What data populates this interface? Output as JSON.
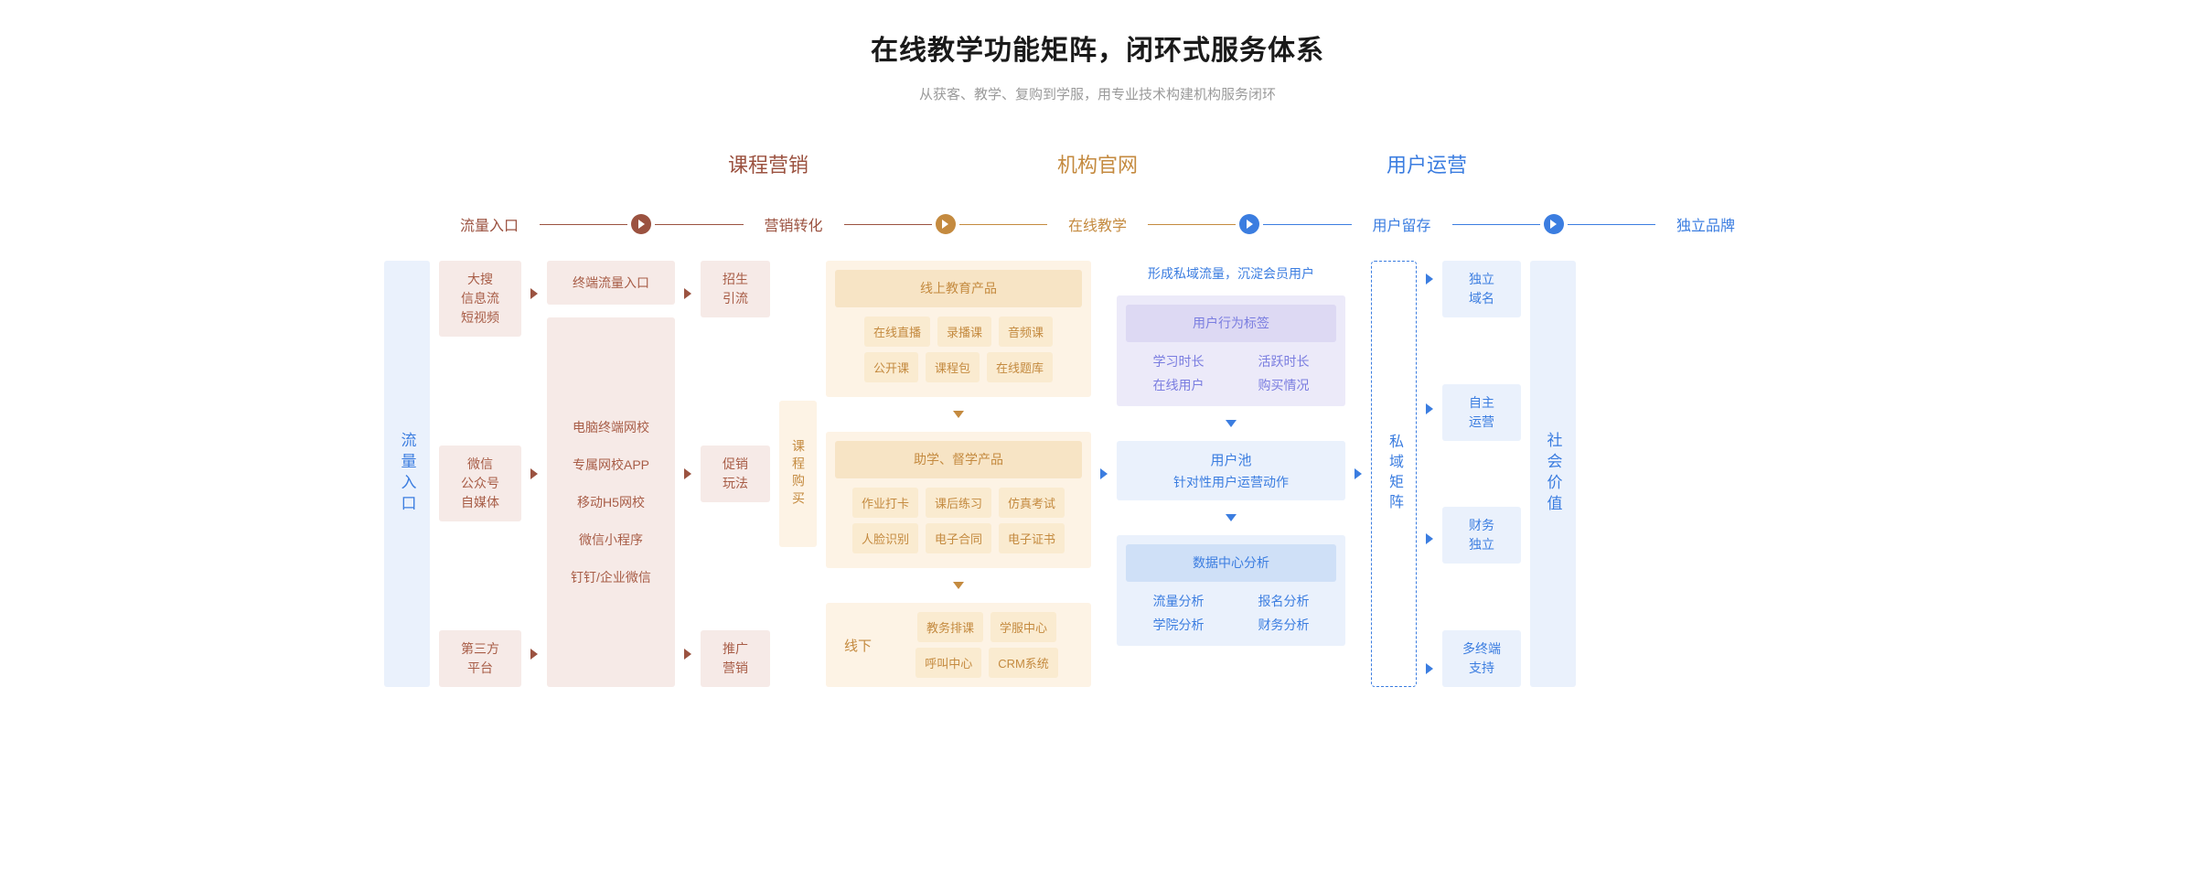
{
  "colors": {
    "brown": "#9b5240",
    "brown_light": "#f6eae7",
    "brown_chip": "#f0ded9",
    "brown_text": "#a85d47",
    "tan": "#c48a3f",
    "tan_light": "#fdf3e5",
    "tan_mid": "#f7e4c5",
    "tan_chip": "#faebd0",
    "tan_text": "#c48a3f",
    "blue": "#3b7de0",
    "blue_light": "#eaf1fc",
    "blue_chip": "#dce9fa",
    "blue_header": "#cfe0f7",
    "blue_text": "#3b7de0",
    "purple": "#7a7de0",
    "purple_light": "#eceaf9",
    "purple_chip": "#ddd9f3",
    "gray_line": "#d9d9d9"
  },
  "header": {
    "title": "在线教学功能矩阵，闭环式服务体系",
    "subtitle": "从获客、教学、复购到学服，用专业技术构建机构服务闭环"
  },
  "sections": [
    {
      "label": "课程营销",
      "color": "brown"
    },
    {
      "label": "机构官网",
      "color": "tan"
    },
    {
      "label": "用户运营",
      "color": "blue"
    }
  ],
  "flow": [
    {
      "label": "流量入口",
      "color": "brown"
    },
    {
      "label": "营销转化",
      "color": "brown"
    },
    {
      "label": "在线教学",
      "color": "tan"
    },
    {
      "label": "用户留存",
      "color": "blue"
    },
    {
      "label": "独立品牌",
      "color": "blue"
    }
  ],
  "left_fixed": "流量入口",
  "c1": {
    "a": "大搜\n信息流\n短视频",
    "b": "微信\n公众号\n自媒体",
    "c": "第三方\n平台"
  },
  "c2": {
    "a": "终端流量入口",
    "b": [
      "电脑终端网校",
      "专属网校APP",
      "移动H5网校",
      "微信小程序",
      "钉钉/企业微信"
    ]
  },
  "c3": {
    "a": "招生\n引流",
    "b": "促销\n玩法",
    "c": "推广\n营销"
  },
  "course_buy": "课程购买",
  "online_edu": {
    "title": "线上教育产品",
    "chips": [
      "在线直播",
      "录播课",
      "音频课",
      "公开课",
      "课程包",
      "在线题库"
    ]
  },
  "assist": {
    "title": "助学、督学产品",
    "chips": [
      "作业打卡",
      "课后练习",
      "仿真考试",
      "人脸识别",
      "电子合同",
      "电子证书"
    ]
  },
  "offline": {
    "title": "线下",
    "chips": [
      "教务排课",
      "学服中心",
      "呼叫中心",
      "CRM系统"
    ]
  },
  "retention": {
    "banner": "形成私域流量，沉淀会员用户",
    "tags": {
      "title": "用户行为标签",
      "rows": [
        [
          "学习时长",
          "活跃时长"
        ],
        [
          "在线用户",
          "购买情况"
        ]
      ]
    },
    "pool": {
      "title": "用户池",
      "sub": "针对性用户运营动作"
    },
    "data": {
      "title": "数据中心分析",
      "rows": [
        [
          "流量分析",
          "报名分析"
        ],
        [
          "学院分析",
          "财务分析"
        ]
      ]
    }
  },
  "private_matrix": "私域矩阵",
  "brand": [
    "独立\n域名",
    "自主\n运营",
    "财务\n独立",
    "多终端\n支持"
  ],
  "right_fixed": "社会价值"
}
